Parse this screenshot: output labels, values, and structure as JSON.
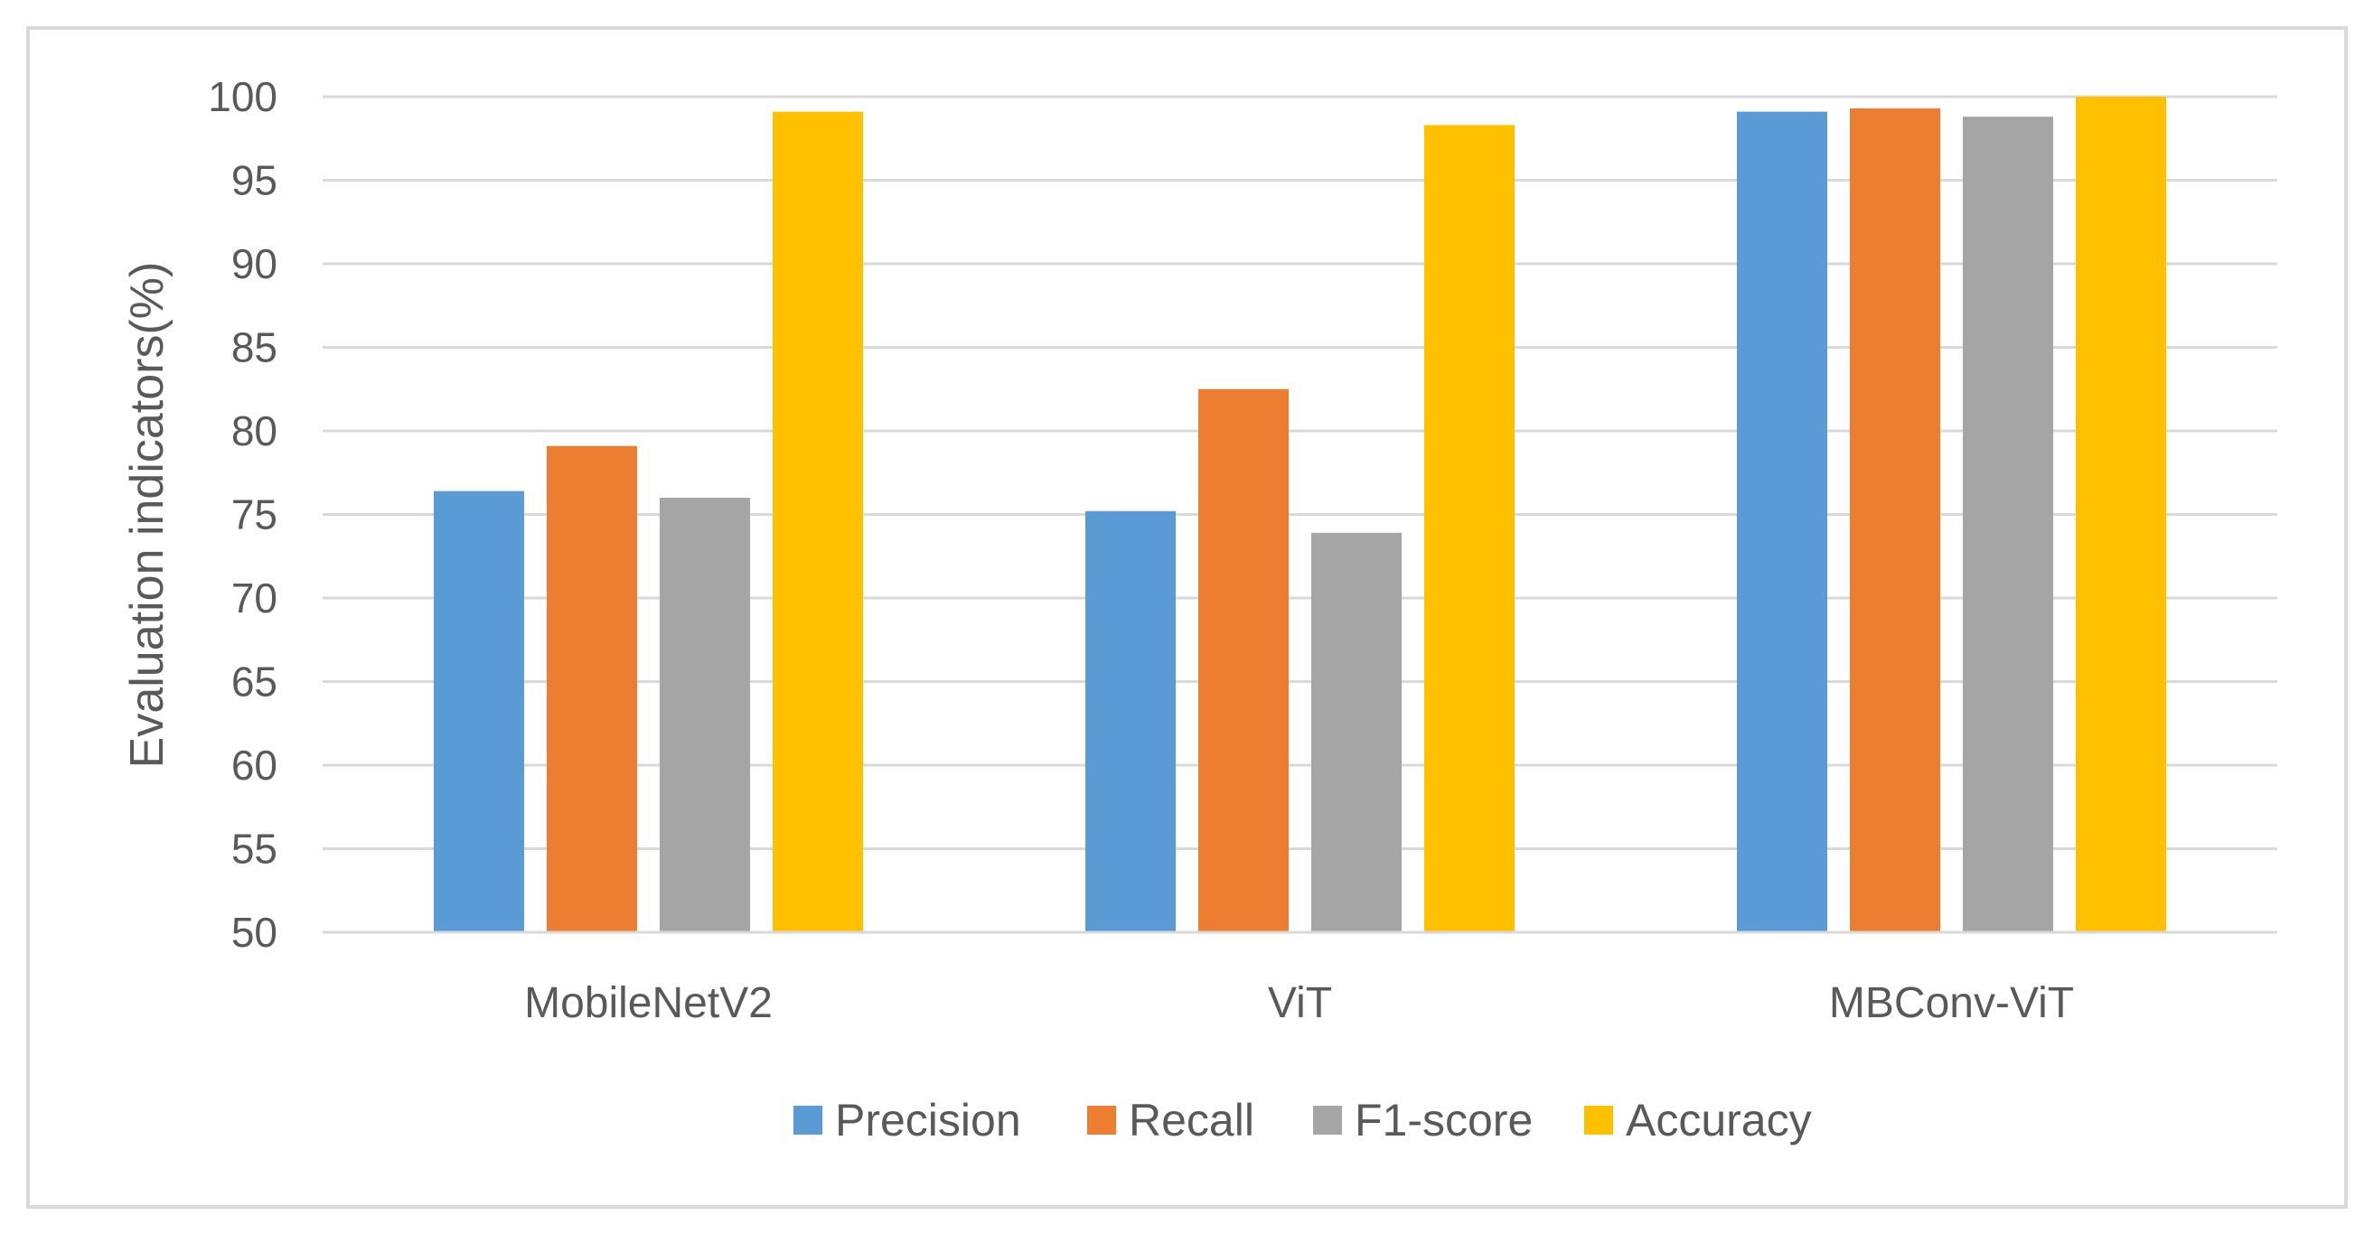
{
  "chart_data": {
    "type": "bar",
    "title": "",
    "xlabel": "",
    "ylabel": "Evaluation indicators(%)",
    "ylim": [
      50,
      100
    ],
    "y_ticks": [
      "50",
      "55",
      "60",
      "65",
      "70",
      "75",
      "80",
      "85",
      "90",
      "95",
      "100"
    ],
    "grid": true,
    "legend_position": "bottom",
    "categories": [
      "MobileNetV2",
      "ViT",
      "MBConv-ViT"
    ],
    "series": [
      {
        "name": "Precision",
        "color": "#5B9BD5",
        "values": [
          76.4,
          75.2,
          99.1
        ]
      },
      {
        "name": "Recall",
        "color": "#ED7D31",
        "values": [
          79.1,
          82.5,
          99.3
        ]
      },
      {
        "name": "F1-score",
        "color": "#A5A5A5",
        "values": [
          76.0,
          73.9,
          98.8
        ]
      },
      {
        "name": "Accuracy",
        "color": "#FFC000",
        "values": [
          99.1,
          98.3,
          100.0
        ]
      }
    ]
  }
}
